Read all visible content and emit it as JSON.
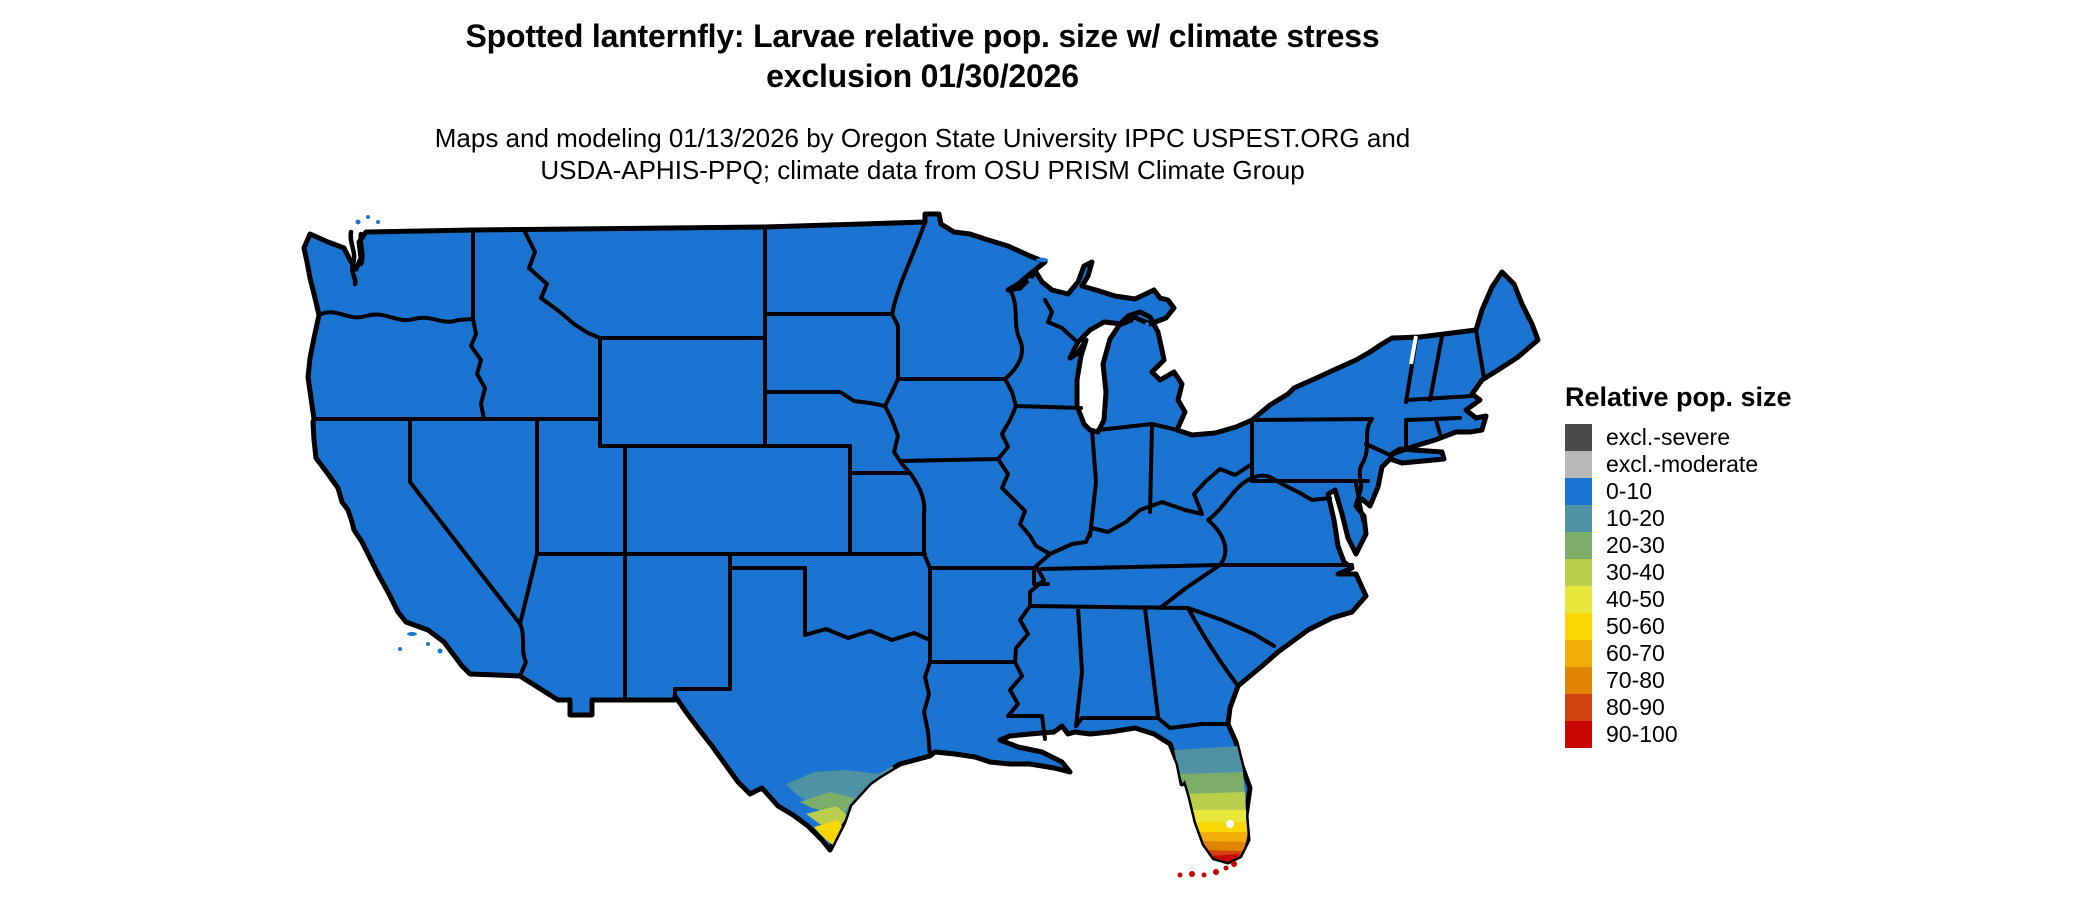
{
  "title": {
    "line1": "Spotted lanternfly: Larvae relative pop. size w/ climate stress",
    "line2": "exclusion 01/30/2026"
  },
  "subtitle": {
    "line1": "Maps and modeling 01/13/2026 by Oregon State University IPPC USPEST.ORG and",
    "line2": "USDA-APHIS-PPQ; climate data from OSU PRISM Climate Group"
  },
  "legend": {
    "title": "Relative pop. size",
    "items": [
      {
        "label": "excl.-severe",
        "color": "#4A4A4A"
      },
      {
        "label": "excl.-moderate",
        "color": "#B8B8B8"
      },
      {
        "label": "0-10",
        "color": "#1B74D1"
      },
      {
        "label": "10-20",
        "color": "#4E92A3"
      },
      {
        "label": "20-30",
        "color": "#7CAE69"
      },
      {
        "label": "30-40",
        "color": "#BBCE4B"
      },
      {
        "label": "40-50",
        "color": "#EAE73C"
      },
      {
        "label": "50-60",
        "color": "#FBD700"
      },
      {
        "label": "60-70",
        "color": "#F1AD08"
      },
      {
        "label": "70-80",
        "color": "#E18400"
      },
      {
        "label": "80-90",
        "color": "#D2430F"
      },
      {
        "label": "90-100",
        "color": "#C90601"
      }
    ]
  },
  "map": {
    "kind": "choropleth of contiguous United States",
    "border_color": "#000000",
    "background": "#FFFFFF",
    "base_bin": "0-10",
    "hotspots": [
      {
        "region": "South Texas (Rio Grande Valley tip)",
        "bins": "10-20 through 50-60, small 60-70 spot"
      },
      {
        "region": "Central and South Florida peninsula",
        "bins": "10-20 grading south to 90-100"
      },
      {
        "region": "Florida Keys",
        "bins": "90-100"
      }
    ]
  },
  "chart_data": {
    "type": "choropleth-map",
    "title": "Spotted lanternfly: Larvae relative pop. size w/ climate stress exclusion 01/30/2026",
    "legend_title": "Relative pop. size",
    "bins": [
      "excl.-severe",
      "excl.-moderate",
      "0-10",
      "10-20",
      "20-30",
      "30-40",
      "40-50",
      "50-60",
      "60-70",
      "70-80",
      "80-90",
      "90-100"
    ],
    "bin_colors": [
      "#4A4A4A",
      "#B8B8B8",
      "#1B74D1",
      "#4E92A3",
      "#7CAE69",
      "#BBCE4B",
      "#EAE73C",
      "#FBD700",
      "#F1AD08",
      "#E18400",
      "#D2430F",
      "#C90601"
    ],
    "regions": [
      {
        "name": "contiguous US (most states)",
        "value": "0-10"
      },
      {
        "name": "south Texas tip",
        "value": "10-60"
      },
      {
        "name": "south Florida",
        "value": "10-100"
      },
      {
        "name": "Florida Keys",
        "value": "90-100"
      }
    ]
  }
}
